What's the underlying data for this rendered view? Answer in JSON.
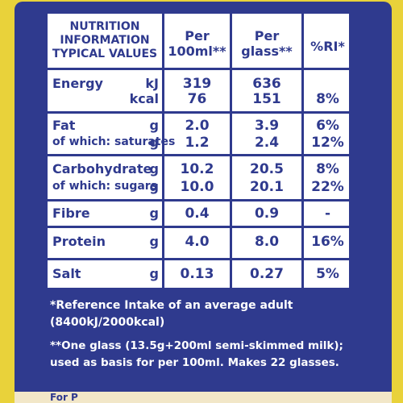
{
  "header": {
    "col1": [
      "NUTRITION",
      "INFORMATION",
      "TYPICAL VALUES"
    ],
    "col2": [
      "Per",
      "100ml**"
    ],
    "col3": [
      "Per",
      "glass**"
    ],
    "col4": "%RI*"
  },
  "rows": {
    "energy": {
      "label": "Energy",
      "units": [
        "kJ",
        "kcal"
      ],
      "per100": [
        "319",
        "76"
      ],
      "perGlass": [
        "636",
        "151"
      ],
      "ri": [
        "",
        "8%"
      ]
    },
    "fat": {
      "label": "Fat",
      "sublabel": "of which: saturates",
      "units": [
        "g",
        "g"
      ],
      "per100": [
        "2.0",
        "1.2"
      ],
      "perGlass": [
        "3.9",
        "2.4"
      ],
      "ri": [
        "6%",
        "12%"
      ]
    },
    "carb": {
      "label": "Carbohydrate",
      "sublabel": "of which: sugars",
      "units": [
        "g",
        "g"
      ],
      "per100": [
        "10.2",
        "10.0"
      ],
      "perGlass": [
        "20.5",
        "20.1"
      ],
      "ri": [
        "8%",
        "22%"
      ]
    },
    "fibre": {
      "label": "Fibre",
      "unit": "g",
      "per100": "0.4",
      "perGlass": "0.9",
      "ri": "-"
    },
    "protein": {
      "label": "Protein",
      "unit": "g",
      "per100": "4.0",
      "perGlass": "8.0",
      "ri": "16%"
    },
    "salt": {
      "label": "Salt",
      "unit": "g",
      "per100": "0.13",
      "perGlass": "0.27",
      "ri": "5%"
    }
  },
  "footnotes": {
    "line1": "*Reference Intake of an average adult",
    "line2": "(8400kJ/2000kcal)",
    "line3": "**One glass (13.5g+200ml semi-skimmed milk);",
    "line4": "used as basis for per 100ml. Makes 22 glasses."
  },
  "bottom_strip": "For P",
  "colors": {
    "navy": "#2f3a8e",
    "yellow": "#e9d23a",
    "white": "#ffffff"
  }
}
